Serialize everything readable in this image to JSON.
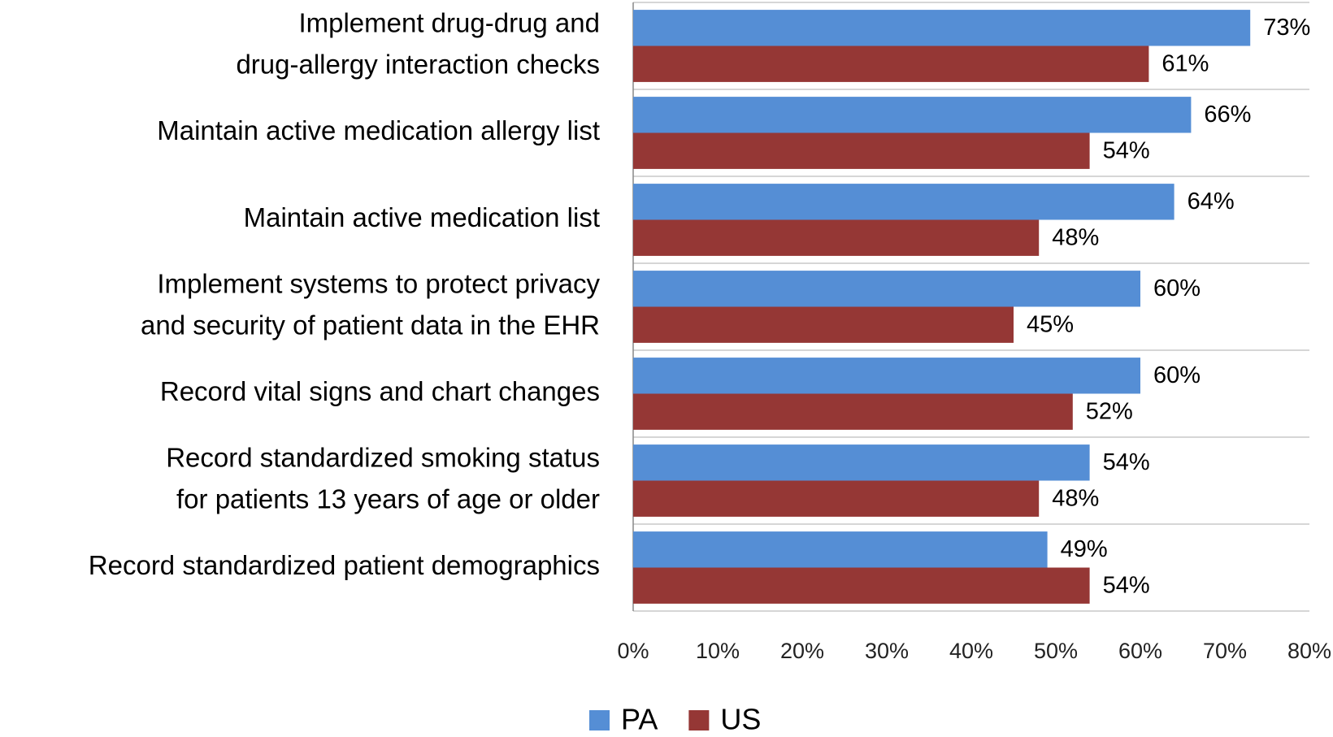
{
  "chart_data": {
    "type": "bar",
    "orientation": "horizontal",
    "categories": [
      [
        "Implement drug-drug and",
        "drug-allergy interaction checks"
      ],
      [
        "Maintain active medication allergy list"
      ],
      [
        "Maintain active medication list"
      ],
      [
        "Implement systems to protect privacy",
        "and security of patient data in the EHR"
      ],
      [
        "Record vital signs and chart changes"
      ],
      [
        "Record standardized smoking status",
        "for patients 13 years of age or older"
      ],
      [
        "Record standardized patient demographics"
      ]
    ],
    "series": [
      {
        "name": "PA",
        "color": "#558ed5",
        "values": [
          73,
          66,
          64,
          60,
          60,
          54,
          49
        ],
        "value_labels": [
          "73%",
          "66%",
          "64%",
          "60%",
          "60%",
          "54%",
          "49%"
        ]
      },
      {
        "name": "US",
        "color": "#953735",
        "values": [
          61,
          54,
          48,
          45,
          52,
          48,
          54
        ],
        "value_labels": [
          "61%",
          "54%",
          "48%",
          "45%",
          "52%",
          "48%",
          "54%"
        ]
      }
    ],
    "xlim": [
      0,
      80
    ],
    "xticks": [
      {
        "value": 0,
        "label": "0%"
      },
      {
        "value": 10,
        "label": "10%"
      },
      {
        "value": 20,
        "label": "20%"
      },
      {
        "value": 30,
        "label": "30%"
      },
      {
        "value": 40,
        "label": "40%"
      },
      {
        "value": 50,
        "label": "50%"
      },
      {
        "value": 60,
        "label": "60%"
      },
      {
        "value": 70,
        "label": "70%"
      },
      {
        "value": 80,
        "label": "80%"
      }
    ],
    "legend": "bottom"
  }
}
